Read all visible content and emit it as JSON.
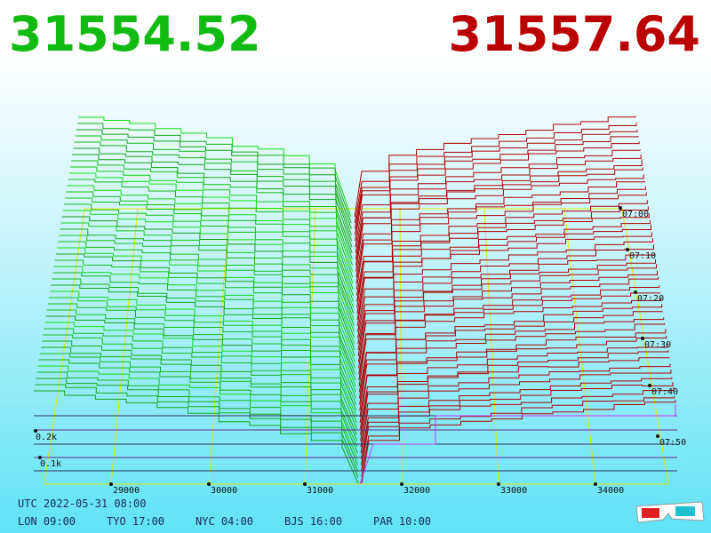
{
  "bid_price": "31554.52",
  "ask_price": "31557.64",
  "price_axis": [
    "29000",
    "30000",
    "31000",
    "32000",
    "33000",
    "34000"
  ],
  "time_axis": [
    "07:00",
    "07:10",
    "07:20",
    "07:30",
    "07:40",
    "07:50"
  ],
  "depth_axis": [
    "0.2k",
    "0.1k"
  ],
  "footer": {
    "utc": "UTC 2022-05-31 08:00",
    "zones": [
      "LON 09:00",
      "TYO 17:00",
      "NYC 04:00",
      "BJS 16:00",
      "PAR 10:00"
    ]
  }
}
